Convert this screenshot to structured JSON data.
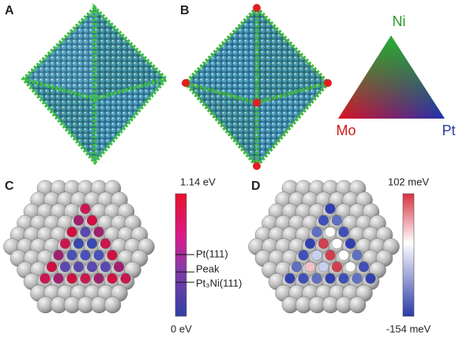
{
  "panels": {
    "a": {
      "label": "A"
    },
    "b": {
      "label": "B"
    },
    "c": {
      "label": "C"
    },
    "d": {
      "label": "D"
    }
  },
  "ternary": {
    "top": "Ni",
    "left": "Mo",
    "right": "Pt"
  },
  "colorbar_c": {
    "max_label": "1.14 eV",
    "min_label": "0 eV",
    "markers": [
      "Pt(111)",
      "Peak",
      "Pt₃Ni(111)"
    ]
  },
  "colorbar_d": {
    "max_label": "102 meV",
    "min_label": "-154 meV"
  }
}
